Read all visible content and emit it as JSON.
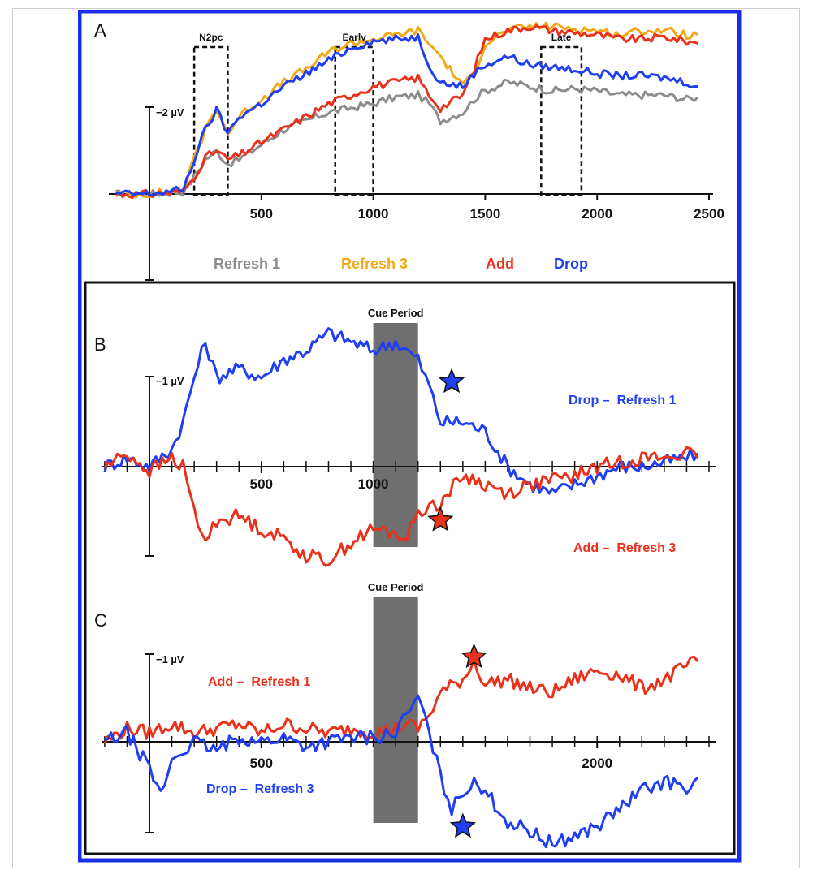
{
  "colors": {
    "refresh1": "#8c8c8c",
    "refresh3": "#f3a816",
    "add": "#e8321c",
    "drop": "#1f3ff0",
    "outer_border": "#1a2ee8",
    "cue_fill": "#6f6f6f"
  },
  "chart_data": [
    {
      "panel": "A",
      "type": "line",
      "scale_label": "−2 µV",
      "x_tick_labels": [
        "500",
        "1000",
        "1500",
        "2000",
        "2500"
      ],
      "x_ticks": [
        500,
        1000,
        1500,
        2000,
        2500
      ],
      "xlim": [
        -250,
        2500
      ],
      "windows": [
        {
          "label": "N2pc",
          "range": [
            200,
            350
          ]
        },
        {
          "label": "Early",
          "range": [
            830,
            1000
          ]
        },
        {
          "label": "Late",
          "range": [
            1750,
            1930
          ]
        }
      ],
      "series": [
        {
          "name": "Refresh 1",
          "color_key": "refresh1",
          "x": [
            -150,
            0,
            150,
            200,
            250,
            300,
            350,
            400,
            500,
            600,
            700,
            800,
            900,
            1000,
            1100,
            1200,
            1250,
            1300,
            1400,
            1450,
            1500,
            1600,
            1700,
            1800,
            1900,
            2000,
            2100,
            2200,
            2300,
            2400,
            2450
          ],
          "y": [
            0,
            0,
            0.05,
            0.4,
            0.8,
            1.0,
            0.7,
            0.8,
            1.15,
            1.5,
            1.7,
            1.9,
            2.0,
            2.1,
            2.25,
            2.3,
            2.1,
            1.7,
            1.9,
            2.2,
            2.4,
            2.6,
            2.5,
            2.4,
            2.45,
            2.4,
            2.3,
            2.3,
            2.3,
            2.2,
            2.25
          ]
        },
        {
          "name": "Refresh 3",
          "color_key": "refresh3",
          "x": [
            -150,
            0,
            150,
            200,
            250,
            300,
            350,
            400,
            500,
            600,
            700,
            800,
            900,
            1000,
            1100,
            1200,
            1250,
            1300,
            1400,
            1450,
            1500,
            1600,
            1700,
            1800,
            1900,
            2000,
            2100,
            2200,
            2300,
            2400,
            2450
          ],
          "y": [
            0,
            0,
            0.1,
            0.8,
            1.5,
            2.0,
            1.4,
            1.8,
            2.2,
            2.6,
            2.9,
            3.3,
            3.5,
            3.6,
            3.7,
            3.8,
            3.5,
            3.2,
            2.5,
            2.8,
            3.5,
            3.8,
            3.9,
            3.9,
            3.85,
            3.8,
            3.7,
            3.8,
            3.8,
            3.7,
            3.7
          ]
        },
        {
          "name": "Add",
          "color_key": "add",
          "x": [
            -150,
            0,
            150,
            200,
            250,
            300,
            350,
            400,
            500,
            600,
            700,
            800,
            900,
            1000,
            1100,
            1200,
            1250,
            1300,
            1400,
            1450,
            1500,
            1600,
            1700,
            1800,
            1900,
            2000,
            2100,
            2200,
            2300,
            2400,
            2450
          ],
          "y": [
            0,
            0,
            0.05,
            0.4,
            0.85,
            1.0,
            0.8,
            0.9,
            1.2,
            1.5,
            1.8,
            2.1,
            2.3,
            2.5,
            2.6,
            2.7,
            2.3,
            2.0,
            2.3,
            2.9,
            3.6,
            3.8,
            3.9,
            3.8,
            3.75,
            3.7,
            3.6,
            3.6,
            3.65,
            3.55,
            3.5
          ]
        },
        {
          "name": "Drop",
          "color_key": "drop",
          "x": [
            -150,
            0,
            150,
            200,
            250,
            300,
            350,
            400,
            500,
            600,
            700,
            800,
            900,
            1000,
            1100,
            1200,
            1250,
            1300,
            1400,
            1450,
            1500,
            1600,
            1700,
            1800,
            1900,
            2000,
            2100,
            2200,
            2300,
            2400,
            2450
          ],
          "y": [
            0,
            0,
            0.1,
            0.8,
            1.5,
            1.95,
            1.4,
            1.8,
            2.1,
            2.5,
            2.8,
            3.1,
            3.4,
            3.55,
            3.6,
            3.65,
            3.0,
            2.6,
            2.5,
            2.8,
            3.0,
            3.2,
            3.0,
            2.95,
            2.9,
            2.8,
            2.75,
            2.75,
            2.7,
            2.6,
            2.5
          ]
        }
      ],
      "legend": [
        "Refresh 1",
        "Refresh 3",
        "Add",
        "Drop"
      ]
    },
    {
      "panel": "B",
      "type": "line",
      "scale_label": "−1 µV",
      "x_tick_labels": [
        "500",
        "1000"
      ],
      "x_ticks": [
        500,
        1000
      ],
      "xlim": [
        -250,
        2500
      ],
      "cue_period": {
        "label": "Cue Period",
        "range": [
          1000,
          1200
        ]
      },
      "series": [
        {
          "name": "Drop –  Refresh 1",
          "color_key": "drop",
          "x": [
            -200,
            -100,
            0,
            100,
            150,
            200,
            250,
            300,
            400,
            500,
            600,
            700,
            800,
            900,
            1000,
            1100,
            1150,
            1200,
            1250,
            1300,
            1400,
            1500,
            1600,
            1700,
            1800,
            1900,
            2000,
            2100,
            2200,
            2300,
            2400,
            2450
          ],
          "y": [
            0,
            0.1,
            0,
            0.2,
            0.5,
            1.0,
            1.4,
            1.0,
            1.1,
            1.0,
            1.2,
            1.3,
            1.5,
            1.4,
            1.3,
            1.4,
            1.3,
            1.2,
            0.9,
            0.5,
            0.5,
            0.4,
            0.0,
            -0.2,
            -0.3,
            -0.2,
            -0.1,
            0.0,
            0.0,
            0.05,
            0.1,
            0.15
          ]
        },
        {
          "name": "Add –  Refresh 3",
          "color_key": "add",
          "x": [
            -200,
            -100,
            0,
            100,
            150,
            200,
            250,
            300,
            400,
            500,
            600,
            700,
            800,
            900,
            1000,
            1100,
            1150,
            1200,
            1250,
            1300,
            1400,
            1500,
            1600,
            1700,
            1800,
            1900,
            2000,
            2100,
            2200,
            2300,
            2400,
            2450
          ],
          "y": [
            0,
            0.15,
            -0.05,
            0.1,
            0.0,
            -0.5,
            -0.85,
            -0.6,
            -0.55,
            -0.7,
            -0.8,
            -1.0,
            -1.05,
            -0.85,
            -0.7,
            -0.75,
            -0.8,
            -0.5,
            -0.45,
            -0.4,
            -0.1,
            -0.2,
            -0.3,
            -0.2,
            -0.15,
            -0.1,
            0.0,
            0.05,
            0.1,
            0.1,
            0.15,
            0.1
          ]
        }
      ],
      "markers": [
        {
          "series": "Drop –  Refresh 1",
          "x": 1350,
          "y": 0.95,
          "color_key": "drop"
        },
        {
          "series": "Add –  Refresh 3",
          "x": 1300,
          "y": -0.6,
          "color_key": "add"
        }
      ]
    },
    {
      "panel": "C",
      "type": "line",
      "scale_label": "−1 µV",
      "x_tick_labels": [
        "500",
        "2000"
      ],
      "x_ticks": [
        500,
        2000
      ],
      "xlim": [
        -250,
        2500
      ],
      "cue_period": {
        "label": "Cue Period",
        "range": [
          1000,
          1200
        ]
      },
      "series": [
        {
          "name": "Add –  Refresh 1",
          "color_key": "add",
          "x": [
            -200,
            -100,
            0,
            100,
            200,
            300,
            400,
            500,
            600,
            700,
            800,
            900,
            1000,
            1100,
            1150,
            1200,
            1250,
            1300,
            1400,
            1450,
            1500,
            1600,
            1700,
            1800,
            1900,
            2000,
            2100,
            2200,
            2300,
            2400,
            2450
          ],
          "y": [
            0,
            0.15,
            0.1,
            0.2,
            0.1,
            0.15,
            0.2,
            0.1,
            0.2,
            0.15,
            0.1,
            0.15,
            0.1,
            0.15,
            0.2,
            0.15,
            0.3,
            0.55,
            0.7,
            0.9,
            0.65,
            0.7,
            0.6,
            0.55,
            0.7,
            0.8,
            0.75,
            0.6,
            0.7,
            0.85,
            0.9
          ]
        },
        {
          "name": "Drop –  Refresh 3",
          "color_key": "drop",
          "x": [
            -200,
            -100,
            0,
            50,
            100,
            200,
            300,
            400,
            500,
            600,
            700,
            800,
            900,
            1000,
            1100,
            1150,
            1200,
            1250,
            1300,
            1350,
            1400,
            1450,
            1500,
            1600,
            1700,
            1800,
            1900,
            2000,
            2100,
            2200,
            2300,
            2400,
            2450
          ],
          "y": [
            0,
            0.1,
            -0.3,
            -0.6,
            -0.2,
            0.0,
            -0.1,
            0.05,
            0.0,
            0.05,
            -0.05,
            0.0,
            0.05,
            0.05,
            0.1,
            0.3,
            0.5,
            0.1,
            -0.4,
            -0.75,
            -0.6,
            -0.4,
            -0.55,
            -0.9,
            -1.0,
            -1.15,
            -1.05,
            -0.95,
            -0.75,
            -0.55,
            -0.45,
            -0.5,
            -0.4
          ]
        }
      ],
      "markers": [
        {
          "series": "Add –  Refresh 1",
          "x": 1450,
          "y": 0.95,
          "color_key": "add"
        },
        {
          "series": "Drop –  Refresh 3",
          "x": 1400,
          "y": -0.95,
          "color_key": "drop"
        }
      ]
    }
  ],
  "panels": {
    "A": {
      "letter": "A"
    },
    "B": {
      "letter": "B"
    },
    "C": {
      "letter": "C"
    }
  }
}
